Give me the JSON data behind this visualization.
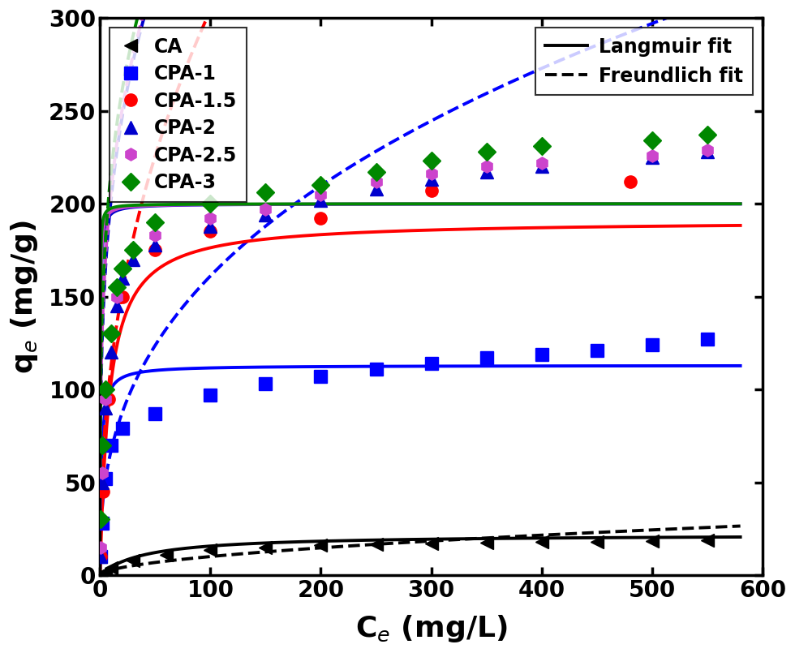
{
  "xlabel": "C$_e$ (mg/L)",
  "ylabel": "q$_e$ (mg/g)",
  "xlim": [
    0,
    600
  ],
  "ylim": [
    0,
    300
  ],
  "xticks": [
    0,
    100,
    200,
    300,
    400,
    500,
    600
  ],
  "yticks": [
    0,
    50,
    100,
    150,
    200,
    250,
    300
  ],
  "series": [
    {
      "label": "CA",
      "color": "#000000",
      "marker": "<",
      "langmuir_qmax": 22.0,
      "langmuir_KL": 0.025,
      "freundlich_KF": 0.8,
      "freundlich_n": 0.55,
      "data_x": [
        0.3,
        1,
        3,
        5,
        10,
        30,
        60,
        100,
        150,
        200,
        250,
        300,
        350,
        400,
        450,
        500,
        550
      ],
      "data_y": [
        0.2,
        0.5,
        1.0,
        2.0,
        4.0,
        8.0,
        11.0,
        13.5,
        15.0,
        16.0,
        16.5,
        17.0,
        17.5,
        17.8,
        18.0,
        18.5,
        19.0
      ]
    },
    {
      "label": "CPA-1",
      "color": "#0000FF",
      "marker": "s",
      "langmuir_qmax": 113.0,
      "langmuir_KL": 0.8,
      "freundlich_KF": 28.0,
      "freundlich_n": 0.38,
      "data_x": [
        0.5,
        2,
        5,
        10,
        20,
        50,
        100,
        150,
        200,
        250,
        300,
        350,
        400,
        450,
        500,
        550
      ],
      "data_y": [
        10,
        28,
        52,
        70,
        79,
        87,
        97,
        103,
        107,
        111,
        114,
        117,
        119,
        121,
        124,
        127
      ]
    },
    {
      "label": "CPA-1.5",
      "color": "#FF0000",
      "marker": "o",
      "langmuir_qmax": 191.0,
      "langmuir_KL": 0.12,
      "freundlich_KF": 42.0,
      "freundlich_n": 0.43,
      "data_x": [
        0.5,
        3,
        8,
        20,
        50,
        100,
        200,
        300,
        480
      ],
      "data_y": [
        10,
        45,
        95,
        150,
        175,
        185,
        192,
        207,
        212
      ]
    },
    {
      "label": "CPA-2",
      "color": "#0000CD",
      "marker": "^",
      "langmuir_qmax": 200.0,
      "langmuir_KL": 3.5,
      "freundlich_KF": 105.0,
      "freundlich_n": 0.285,
      "data_x": [
        0.5,
        2,
        5,
        10,
        15,
        20,
        30,
        50,
        100,
        150,
        200,
        250,
        300,
        350,
        400,
        500,
        550
      ],
      "data_y": [
        10,
        50,
        90,
        120,
        145,
        160,
        170,
        178,
        188,
        194,
        202,
        208,
        213,
        217,
        220,
        225,
        228
      ]
    },
    {
      "label": "CPA-2.5",
      "color": "#CC44CC",
      "marker": "h",
      "langmuir_qmax": 200.0,
      "langmuir_KL": 4.5,
      "freundlich_KF": 110.0,
      "freundlich_n": 0.275,
      "data_x": [
        0.5,
        2,
        5,
        10,
        15,
        20,
        30,
        50,
        100,
        150,
        200,
        250,
        300,
        350,
        400,
        500,
        550
      ],
      "data_y": [
        15,
        55,
        95,
        130,
        150,
        165,
        175,
        183,
        192,
        197,
        205,
        212,
        216,
        220,
        222,
        226,
        229
      ]
    },
    {
      "label": "CPA-3",
      "color": "#008800",
      "marker": "D",
      "langmuir_qmax": 200.0,
      "langmuir_KL": 8.0,
      "freundlich_KF": 118.0,
      "freundlich_n": 0.265,
      "data_x": [
        0.5,
        2,
        5,
        10,
        15,
        20,
        30,
        50,
        100,
        150,
        200,
        250,
        300,
        350,
        400,
        500,
        550
      ],
      "data_y": [
        30,
        70,
        100,
        130,
        155,
        165,
        175,
        190,
        200,
        206,
        210,
        217,
        223,
        228,
        231,
        234,
        237
      ]
    }
  ],
  "marker_size": 11,
  "line_width": 2.8,
  "axis_linewidth": 2.5,
  "tick_fontsize": 20,
  "label_fontsize": 26,
  "legend_fontsize": 17
}
